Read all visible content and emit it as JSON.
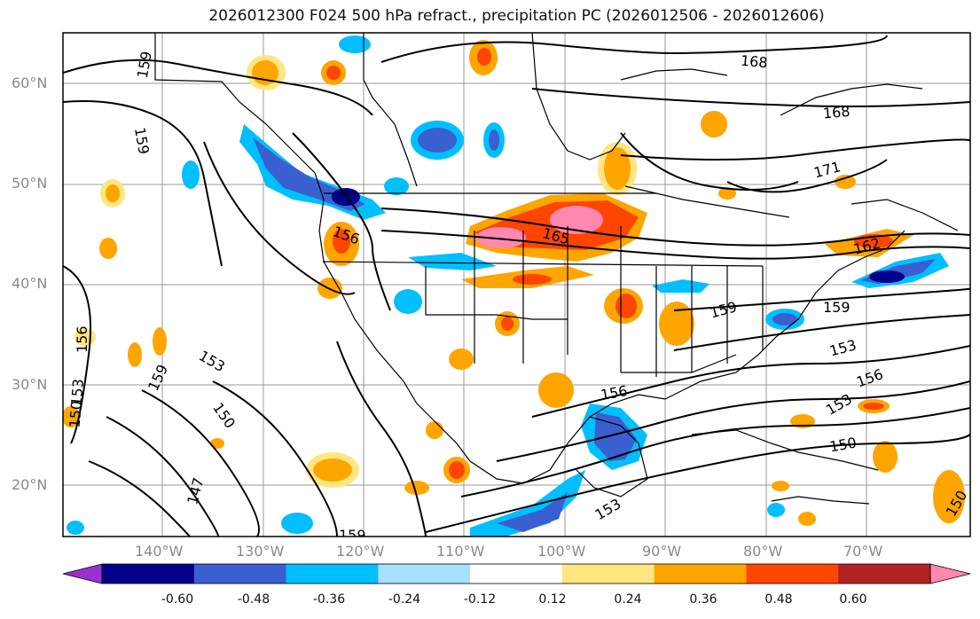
{
  "title": "2026012300 F024 500 hPa refract., precipitation PC (2026012506 - 2026012606)",
  "map": {
    "lat_labels": [
      "60°N",
      "50°N",
      "40°N",
      "30°N",
      "20°N"
    ],
    "lon_labels": [
      "140°W",
      "130°W",
      "120°W",
      "110°W",
      "100°W",
      "90°W",
      "80°W",
      "70°W"
    ],
    "contour_labels": [
      "159",
      "159",
      "168",
      "168",
      "171",
      "165",
      "162",
      "159",
      "159",
      "156",
      "153",
      "153",
      "150",
      "150",
      "147",
      "153",
      "159",
      "156",
      "156",
      "153",
      "150",
      "156",
      "153",
      "159",
      "150"
    ]
  },
  "colorbar": {
    "tick_labels": [
      "-0.60",
      "-0.48",
      "-0.36",
      "-0.24",
      "-0.12",
      "0.12",
      "0.24",
      "0.36",
      "0.48",
      "0.60"
    ],
    "colors": [
      "#9b30d0",
      "#00008b",
      "#3a5fd0",
      "#00bfff",
      "#a8e0ff",
      "#ffffff",
      "#ffe680",
      "#ffa500",
      "#ff4500",
      "#b22222",
      "#ff88b0"
    ]
  }
}
